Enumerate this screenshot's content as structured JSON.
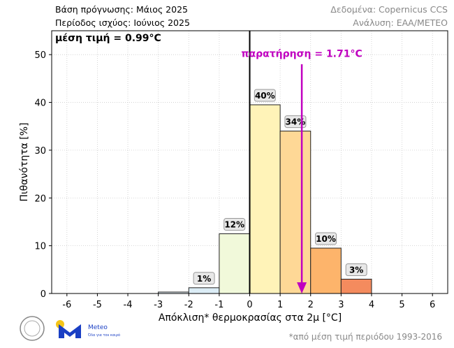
{
  "header": {
    "base": "Βάση πρόγνωσης: Μάιος 2025",
    "period": "Περίοδος ισχύος: Ιούνιος 2025",
    "data_source": "Δεδομένα: Copernicus CCS",
    "analysis": "Ανάλυση: ΕΑΑ/METEO"
  },
  "footnote": "*από μέση τιμή περιόδου 1993-2016",
  "logos": {
    "meteo": "Meteo",
    "meteo_sub": "Όλα για τον καιρό"
  },
  "chart_data": {
    "type": "bar",
    "xlabel": "Απόκλιση* θερμοκρασίας στα 2μ [°C]",
    "ylabel": "Πιθανότητα [%]",
    "xlim": [
      -6.5,
      6.5
    ],
    "ylim": [
      0,
      55
    ],
    "xticks": [
      -6,
      -5,
      -4,
      -3,
      -2,
      -1,
      0,
      1,
      2,
      3,
      4,
      5,
      6
    ],
    "yticks": [
      0,
      10,
      20,
      30,
      40,
      50
    ],
    "grid": true,
    "bins": [
      {
        "from": -3,
        "to": -2,
        "value": 0.3,
        "label": "",
        "color": "#e4f1f6"
      },
      {
        "from": -2,
        "to": -1,
        "value": 1.2,
        "label": "1%",
        "color": "#dcedf6"
      },
      {
        "from": -1,
        "to": 0,
        "value": 12.5,
        "label": "12%",
        "color": "#f1f9da"
      },
      {
        "from": 0,
        "to": 1,
        "value": 39.5,
        "label": "40%",
        "color": "#fff3b8"
      },
      {
        "from": 1,
        "to": 2,
        "value": 34,
        "label": "34%",
        "color": "#fed896"
      },
      {
        "from": 2,
        "to": 3,
        "value": 9.5,
        "label": "10%",
        "color": "#fdb46b"
      },
      {
        "from": 3,
        "to": 4,
        "value": 3,
        "label": "3%",
        "color": "#f48b5e"
      }
    ],
    "mean_label": "μέση τιμή = 0.99°C",
    "observation": {
      "value": 1.71,
      "label": "παρατήρηση = 1.71°C",
      "color": "#c000c0"
    }
  }
}
